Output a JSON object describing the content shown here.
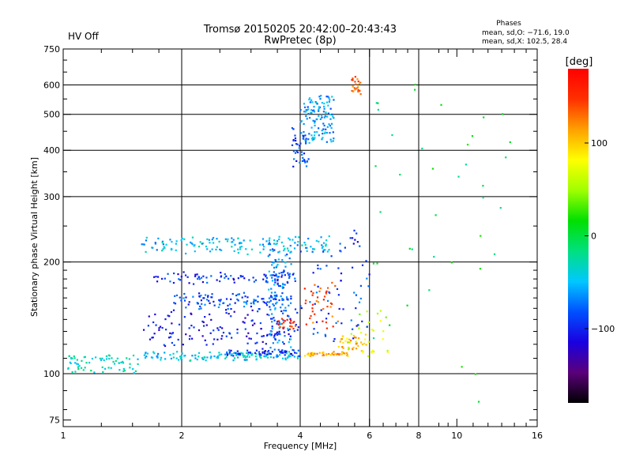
{
  "status": {
    "hv_label": "HV Off",
    "hv_color": "#cc0000"
  },
  "chart_data": {
    "type": "scatter",
    "title": "Tromsø 20150205 20:42:00–20:43:43",
    "subtitle": "RwPretec (8p)",
    "xlabel": "Frequency [MHz]",
    "ylabel": "Stationary phase Virtual Height [km]",
    "x_scale": "log",
    "y_scale": "log",
    "xlim": [
      1,
      16
    ],
    "ylim": [
      72,
      750
    ],
    "x_ticks": [
      1,
      2,
      4,
      6,
      8,
      10,
      16
    ],
    "x_tick_labels": [
      "1",
      "2",
      "4",
      "6",
      "8",
      "10",
      "16"
    ],
    "x_gridlines": [
      1,
      2,
      4,
      6,
      8
    ],
    "x_minor_ticks": [
      1.25,
      1.5,
      1.75,
      2.5,
      3,
      3.5,
      4.5,
      5,
      5.5,
      6.5,
      7,
      7.5,
      9,
      9.5,
      11,
      12,
      13,
      14,
      15
    ],
    "y_ticks": [
      75,
      100,
      200,
      300,
      400,
      500,
      600,
      750
    ],
    "y_tick_labels": [
      "75",
      "100",
      "200",
      "300",
      "400",
      "500",
      "600",
      "750"
    ],
    "y_gridlines": [
      100,
      200,
      300,
      400,
      500,
      600
    ],
    "y_minor_ticks": [
      80,
      90,
      110,
      120,
      130,
      140,
      150,
      160,
      170,
      180,
      190,
      250,
      350,
      450,
      550,
      650,
      700
    ],
    "grid": true,
    "stats": {
      "title": "Phases",
      "line1": "mean, sd,O: −71.6, 19.0",
      "line2": "mean, sd,X: 102.5, 28.4"
    },
    "colorbar": {
      "label": "[deg]",
      "range": [
        -180,
        180
      ],
      "ticks": [
        100,
        0,
        -100
      ],
      "tick_labels": [
        "100",
        "0",
        "−100"
      ],
      "stops": [
        "#000000",
        "#5a007a",
        "#1a00e0",
        "#0050ff",
        "#00c8ff",
        "#00e080",
        "#00e000",
        "#a0ff00",
        "#ffff00",
        "#ffa000",
        "#ff3000",
        "#ff0000"
      ]
    },
    "traces": [
      {
        "name": "",
        "phase": -30,
        "count": 70,
        "f": [
          1.02,
          1.55
        ],
        "h": [
          101,
          112
        ],
        "jitter": 2
      },
      {
        "name": "",
        "phase": -45,
        "count": 130,
        "f": [
          1.6,
          4.0
        ],
        "h": [
          109,
          114
        ],
        "jitter": 1.5
      },
      {
        "name": "",
        "phase": -95,
        "count": 60,
        "f": [
          2.6,
          4.0
        ],
        "h": [
          112,
          116
        ],
        "jitter": 1.5
      },
      {
        "name": "",
        "phase": 110,
        "count": 55,
        "f": [
          4.1,
          5.3
        ],
        "h": [
          112,
          114
        ],
        "jitter": 1.5
      },
      {
        "name": "",
        "phase": 105,
        "count": 35,
        "f": [
          5.0,
          5.9
        ],
        "h": [
          114,
          127
        ],
        "jitter": 3
      },
      {
        "name": "",
        "phase": -50,
        "count": 150,
        "f": [
          1.55,
          4.9
        ],
        "h": [
          212,
          234
        ],
        "jitter": 6
      },
      {
        "name": "",
        "phase": -95,
        "count": 80,
        "f": [
          1.7,
          3.9
        ],
        "h": [
          176,
          186
        ],
        "jitter": 5
      },
      {
        "name": "",
        "phase": -85,
        "count": 110,
        "f": [
          1.9,
          3.8
        ],
        "h": [
          150,
          164
        ],
        "jitter": 6
      },
      {
        "name": "",
        "phase": -105,
        "count": 140,
        "f": [
          1.6,
          4.0
        ],
        "h": [
          120,
          146
        ],
        "jitter": 8
      },
      {
        "name": "",
        "phase": -70,
        "count": 110,
        "f": [
          3.3,
          3.8
        ],
        "h": [
          120,
          215
        ],
        "jitter": 8
      },
      {
        "name": "",
        "phase": -60,
        "count": 120,
        "f": [
          4.0,
          4.9
        ],
        "h": [
          420,
          560
        ],
        "jitter": 20
      },
      {
        "name": "",
        "phase": -90,
        "count": 40,
        "f": [
          3.8,
          4.2
        ],
        "h": [
          360,
          460
        ],
        "jitter": 20
      },
      {
        "name": "",
        "phase": 130,
        "count": 25,
        "f": [
          5.4,
          5.7
        ],
        "h": [
          570,
          630
        ],
        "jitter": 12
      },
      {
        "name": "",
        "phase": 140,
        "count": 40,
        "f": [
          4.1,
          5.0
        ],
        "h": [
          130,
          180
        ],
        "jitter": 8
      },
      {
        "name": "",
        "phase": 150,
        "count": 20,
        "f": [
          3.5,
          3.9
        ],
        "h": [
          132,
          140
        ],
        "jitter": 3
      },
      {
        "name": "",
        "phase": 60,
        "count": 30,
        "f": [
          5.3,
          6.8
        ],
        "h": [
          112,
          150
        ],
        "jitter": 6
      },
      {
        "name": "",
        "phase": -90,
        "count": 70,
        "f": [
          4.0,
          6.0
        ],
        "h": [
          120,
          240
        ],
        "jitter": 12
      },
      {
        "name": "",
        "phase": 0,
        "count": 40,
        "f": [
          6.0,
          14.0
        ],
        "h": [
          80,
          600
        ],
        "jitter": 40
      }
    ]
  }
}
